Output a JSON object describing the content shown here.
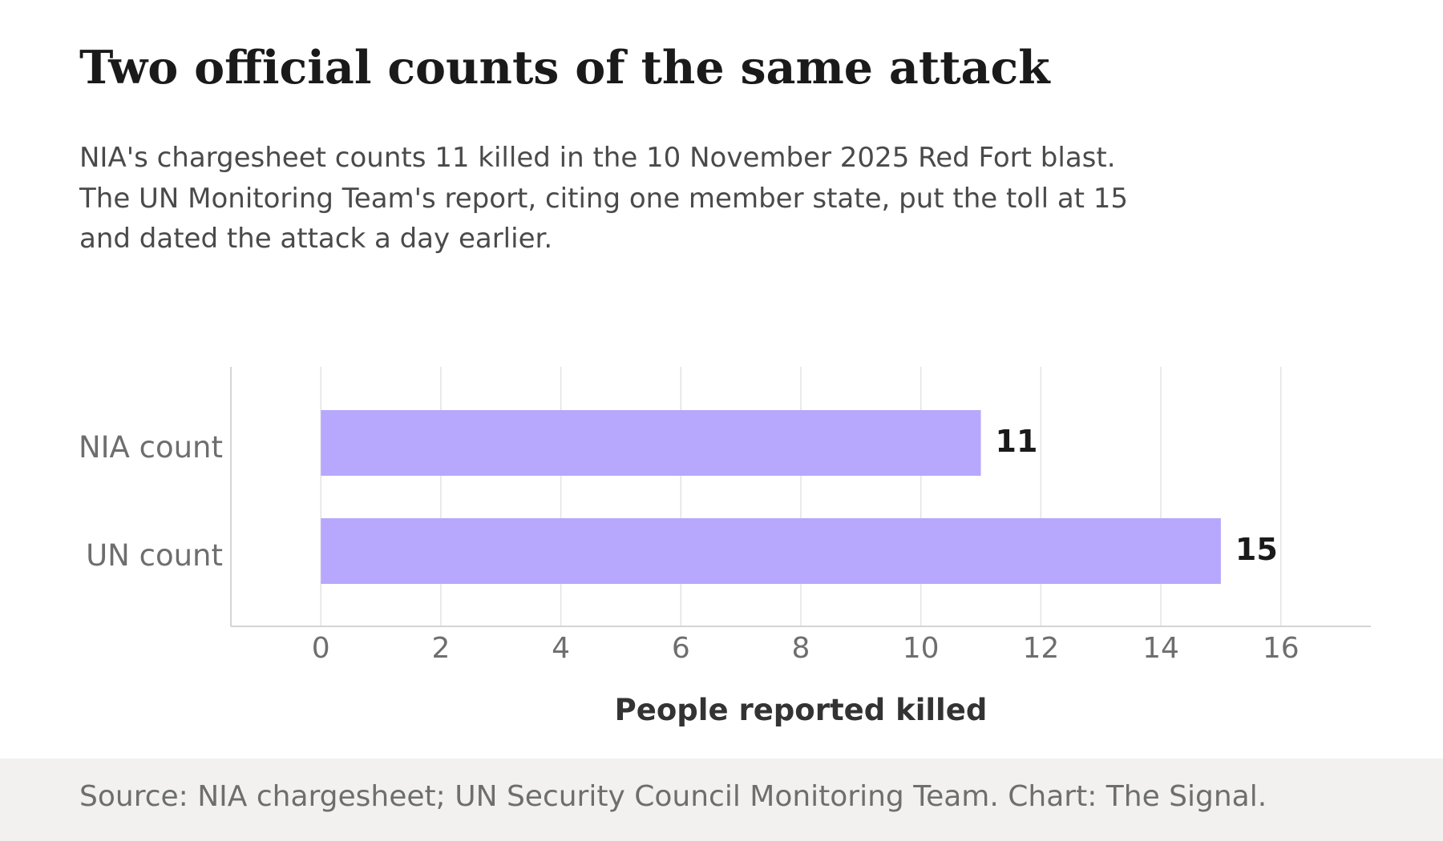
{
  "colors": {
    "bar": "#b7a8fd",
    "grid": "#e3e3e3",
    "axis": "#d4d4d4",
    "tick_text": "#6e6e6e",
    "value_text": "#1a1a1a",
    "axis_label": "#333333",
    "footer_bg": "#f2f1f0"
  },
  "chart_data": {
    "type": "bar",
    "orientation": "horizontal",
    "title": "Two official counts of the same attack",
    "subtitle": "NIA's chargesheet counts 11 killed in the 10 November 2025 Red Fort blast. The UN Monitoring Team's report, citing one member state, put the toll at 15 and dated the attack a day earlier.",
    "categories": [
      "NIA count",
      "UN count"
    ],
    "values": [
      11,
      15
    ],
    "value_labels": [
      "11",
      "15"
    ],
    "xlabel": "People reported killed",
    "ylabel": "",
    "xlim": [
      -1.5,
      17.5
    ],
    "xticks": [
      0,
      2,
      4,
      6,
      8,
      10,
      12,
      14,
      16
    ],
    "xtick_labels": [
      "0",
      "2",
      "4",
      "6",
      "8",
      "10",
      "12",
      "14",
      "16"
    ],
    "grid": "vertical",
    "legend": "none"
  },
  "footer": {
    "source": "Source: NIA chargesheet; UN Security Council Monitoring Team. Chart: The Signal."
  }
}
